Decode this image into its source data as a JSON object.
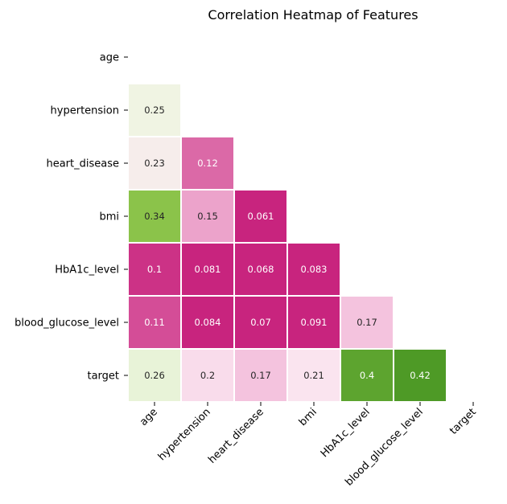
{
  "chart_data": {
    "type": "heatmap",
    "title": "Correlation Heatmap of Features",
    "xlabel": "",
    "ylabel": "",
    "variables": [
      "age",
      "hypertension",
      "heart_disease",
      "bmi",
      "HbA1c_level",
      "blood_glucose_level",
      "target"
    ],
    "mask": "upper-triangle including diagonal",
    "colormap": "PiYG (diverging pink-white-green)",
    "grid": false,
    "cells": [
      {
        "row": "hypertension",
        "col": "age",
        "value": 0.25,
        "label": "0.25"
      },
      {
        "row": "heart_disease",
        "col": "age",
        "value": 0.23,
        "label": "0.23"
      },
      {
        "row": "heart_disease",
        "col": "hypertension",
        "value": 0.12,
        "label": "0.12"
      },
      {
        "row": "bmi",
        "col": "age",
        "value": 0.34,
        "label": "0.34"
      },
      {
        "row": "bmi",
        "col": "hypertension",
        "value": 0.15,
        "label": "0.15"
      },
      {
        "row": "bmi",
        "col": "heart_disease",
        "value": 0.061,
        "label": "0.061"
      },
      {
        "row": "HbA1c_level",
        "col": "age",
        "value": 0.1,
        "label": "0.1"
      },
      {
        "row": "HbA1c_level",
        "col": "hypertension",
        "value": 0.081,
        "label": "0.081"
      },
      {
        "row": "HbA1c_level",
        "col": "heart_disease",
        "value": 0.068,
        "label": "0.068"
      },
      {
        "row": "HbA1c_level",
        "col": "bmi",
        "value": 0.083,
        "label": "0.083"
      },
      {
        "row": "blood_glucose_level",
        "col": "age",
        "value": 0.11,
        "label": "0.11"
      },
      {
        "row": "blood_glucose_level",
        "col": "hypertension",
        "value": 0.084,
        "label": "0.084"
      },
      {
        "row": "blood_glucose_level",
        "col": "heart_disease",
        "value": 0.07,
        "label": "0.07"
      },
      {
        "row": "blood_glucose_level",
        "col": "bmi",
        "value": 0.091,
        "label": "0.091"
      },
      {
        "row": "blood_glucose_level",
        "col": "HbA1c_level",
        "value": 0.17,
        "label": "0.17"
      },
      {
        "row": "target",
        "col": "age",
        "value": 0.26,
        "label": "0.26"
      },
      {
        "row": "target",
        "col": "hypertension",
        "value": 0.2,
        "label": "0.2"
      },
      {
        "row": "target",
        "col": "heart_disease",
        "value": 0.17,
        "label": "0.17"
      },
      {
        "row": "target",
        "col": "bmi",
        "value": 0.21,
        "label": "0.21"
      },
      {
        "row": "target",
        "col": "HbA1c_level",
        "value": 0.4,
        "label": "0.4"
      },
      {
        "row": "target",
        "col": "blood_glucose_level",
        "value": 0.42,
        "label": "0.42"
      }
    ]
  },
  "colors": {
    "high_value": "#4e9a26",
    "mid_high": "#8bc34a",
    "light_green": "#eef6e1",
    "neutral": "#ffffff",
    "light_pink": "#fbe8f1",
    "pink": "#f4c3de",
    "mid_pink": "#e384b8",
    "low_value": "#c8247e"
  }
}
